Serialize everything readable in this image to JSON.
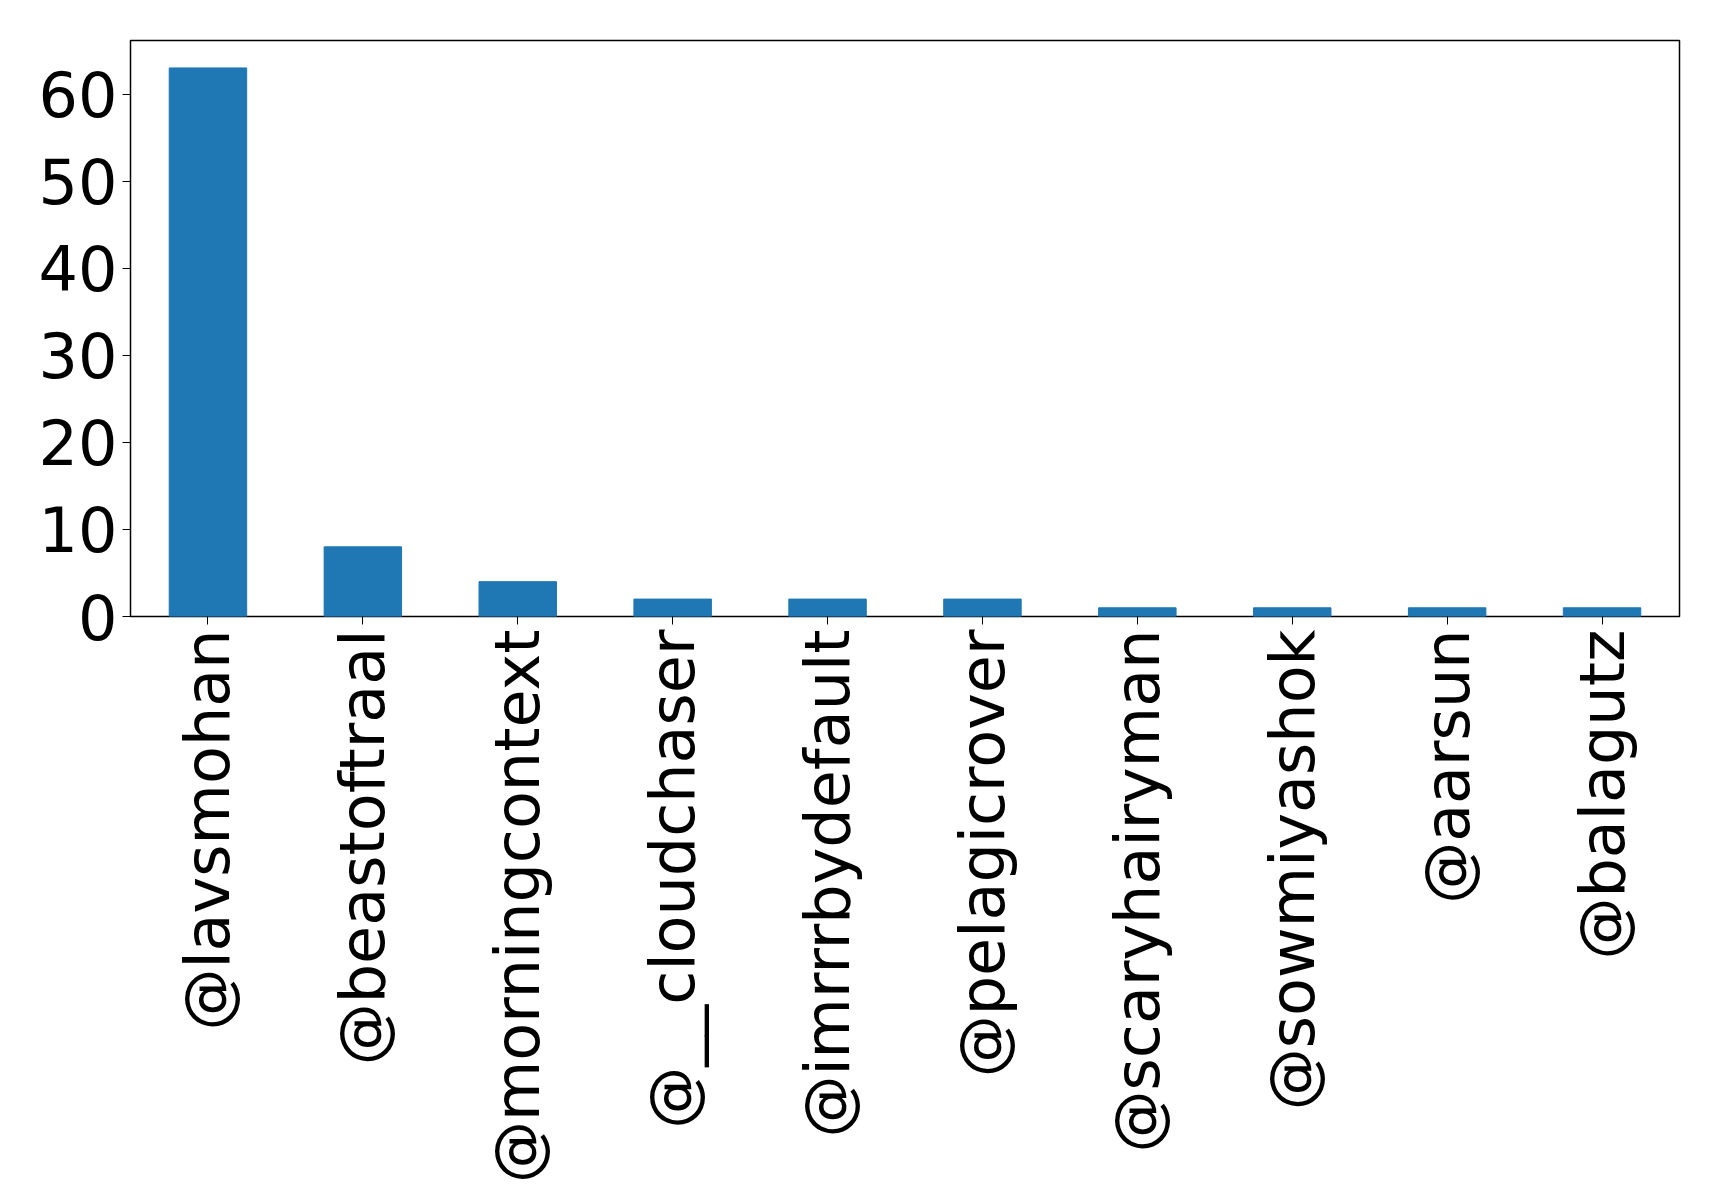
{
  "chart_data": {
    "type": "bar",
    "categories": [
      "@lavsmohan",
      "@beastoftraal",
      "@morningcontext",
      "@__cloudchaser",
      "@imrrrbydefault",
      "@pelagicrover",
      "@scaryhairyman",
      "@sowmiyashok",
      "@aarsun",
      "@balagutz"
    ],
    "values": [
      63,
      8,
      4,
      2,
      2,
      2,
      1,
      1,
      1,
      1
    ],
    "color": "#1f77b4",
    "ylim": [
      0,
      66.15
    ],
    "yticks": [
      0,
      10,
      20,
      30,
      40,
      50,
      60
    ],
    "grid": false
  }
}
